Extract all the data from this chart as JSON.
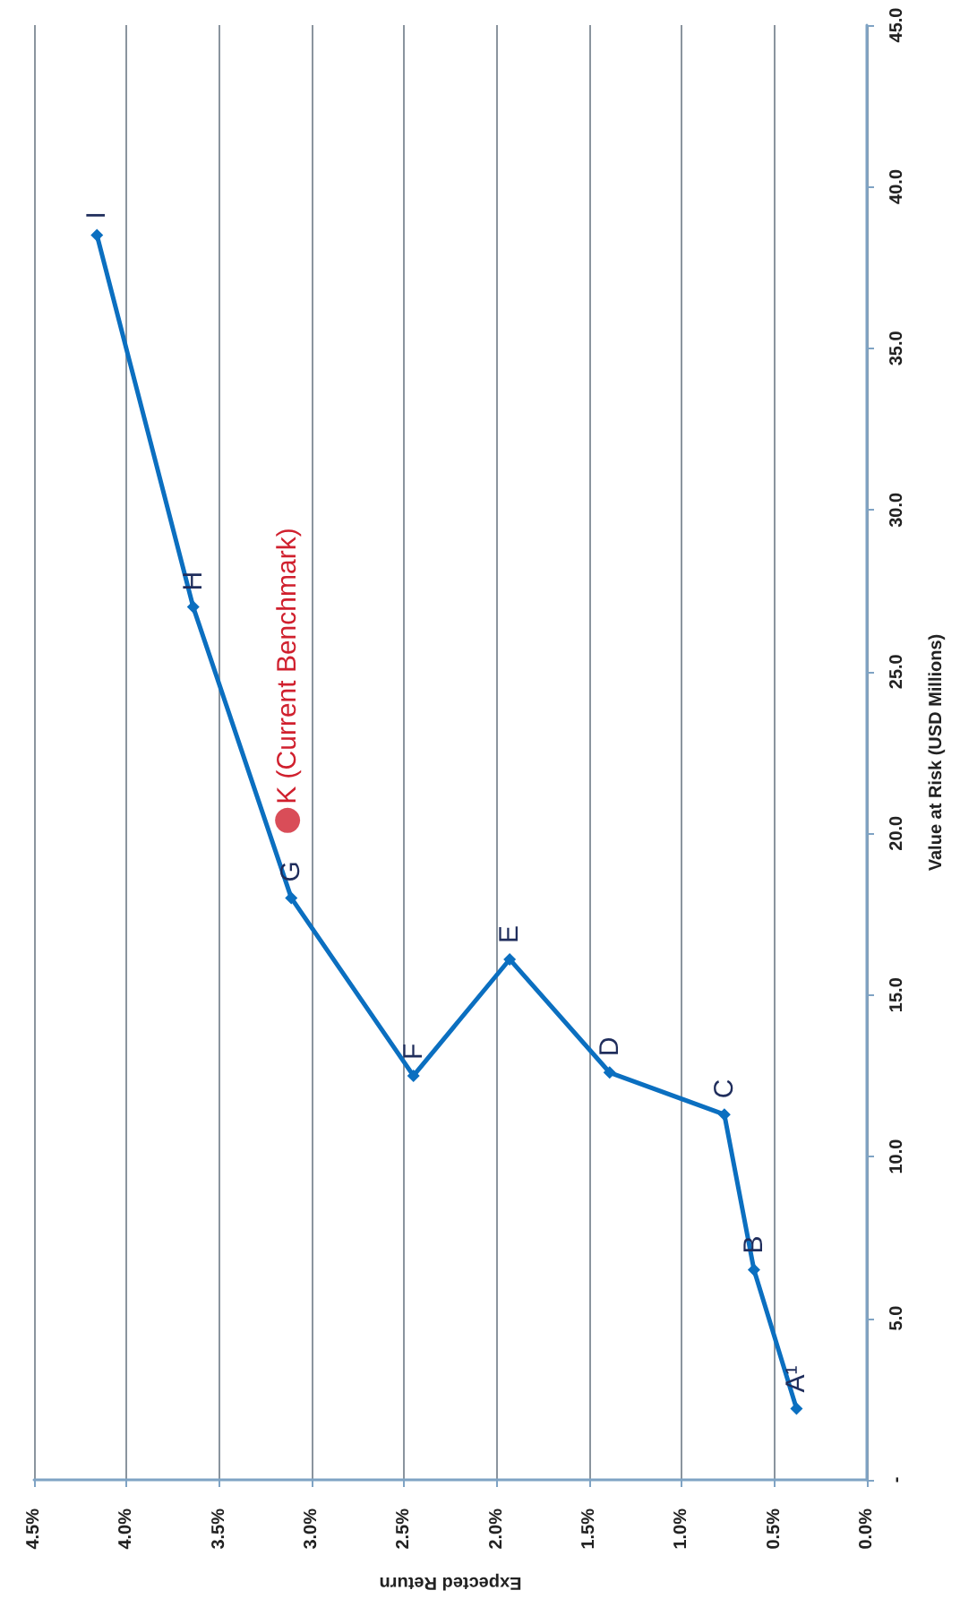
{
  "chart_data": {
    "type": "line",
    "xlabel": "Expected Return",
    "ylabel": "Value at Risk (USD Millions)",
    "series": [
      {
        "color": "#0b6fc0",
        "x": [
          0.38,
          0.61,
          0.77,
          1.39,
          1.93,
          2.45,
          3.11,
          3.64,
          4.16
        ],
        "values": [
          2.2,
          6.5,
          11.3,
          12.6,
          16.1,
          12.5,
          18.0,
          27.0,
          38.5
        ]
      },
      {
        "type": "scatter",
        "color": "#d0202e",
        "marker": "circle",
        "x": [
          3.13
        ],
        "values": [
          20.4
        ]
      }
    ],
    "xlim": [
      4.5,
      0
    ],
    "xticks": [
      {
        "value": 4.5,
        "label": "4.5%"
      },
      {
        "value": 4,
        "label": "4.0%"
      },
      {
        "value": 3.5,
        "label": "3.5%"
      },
      {
        "value": 3,
        "label": "3.0%"
      },
      {
        "value": 2.5,
        "label": "2.5%"
      },
      {
        "value": 2,
        "label": "2.0%"
      },
      {
        "value": 1.5,
        "label": "1.5%"
      },
      {
        "value": 1,
        "label": "1.0%"
      },
      {
        "value": 0.5,
        "label": "0.5%"
      },
      {
        "value": 0,
        "label": "0.0%"
      }
    ],
    "ylim": [
      0,
      45
    ],
    "yticks": [
      {
        "value": 0,
        "label": "-"
      },
      {
        "value": 5,
        "label": "5.0"
      },
      {
        "value": 10,
        "label": "10.0"
      },
      {
        "value": 15,
        "label": "15.0"
      },
      {
        "value": 20,
        "label": "20.0"
      },
      {
        "value": 25,
        "label": "25.0"
      },
      {
        "value": 30,
        "label": "30.0"
      },
      {
        "value": 35,
        "label": "35.0"
      },
      {
        "value": 40,
        "label": "40.0"
      },
      {
        "value": 45,
        "label": "45.0"
      }
    ],
    "grid": "x",
    "marker": "diamond",
    "annotations": [
      {
        "text": "A¹",
        "x": 0.38,
        "y": 2.2
      },
      {
        "text": "B",
        "x": 0.61,
        "y": 6.5
      },
      {
        "text": "C",
        "x": 0.77,
        "y": 11.3
      },
      {
        "text": "D",
        "x": 1.39,
        "y": 12.6
      },
      {
        "text": "E",
        "x": 1.93,
        "y": 16.1
      },
      {
        "text": "F",
        "x": 2.45,
        "y": 12.5
      },
      {
        "text": "G",
        "x": 3.11,
        "y": 18.0
      },
      {
        "text": "H",
        "x": 3.64,
        "y": 27.0
      },
      {
        "text": "I",
        "x": 4.16,
        "y": 38.5
      },
      {
        "text": "K (Current Benchmark)",
        "x": 3.13,
        "y": 20.4
      }
    ]
  }
}
